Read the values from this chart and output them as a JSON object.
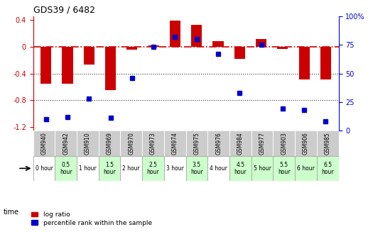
{
  "title": "GDS39 / 6482",
  "samples": [
    "GSM940",
    "GSM942",
    "GSM910",
    "GSM969",
    "GSM970",
    "GSM973",
    "GSM974",
    "GSM975",
    "GSM976",
    "GSM984",
    "GSM977",
    "GSM903",
    "GSM906",
    "GSM985"
  ],
  "time_labels": [
    "0 hour",
    "0.5\nhour",
    "1 hour",
    "1.5\nhour",
    "2 hour",
    "2.5\nhour",
    "3 hour",
    "3.5\nhour",
    "4 hour",
    "4.5\nhour",
    "5 hour",
    "5.5\nhour",
    "6 hour",
    "6.5\nhour"
  ],
  "log_ratio": [
    -0.55,
    -0.55,
    -0.27,
    -0.65,
    -0.05,
    0.02,
    0.39,
    0.32,
    0.08,
    -0.18,
    0.11,
    -0.04,
    -0.49,
    -0.49
  ],
  "percentile": [
    10,
    12,
    28,
    11,
    46,
    73,
    82,
    80,
    67,
    33,
    75,
    19,
    18,
    8
  ],
  "ylim_left": [
    -1.25,
    0.45
  ],
  "ylim_right": [
    0,
    100
  ],
  "yticks_left": [
    -1.2,
    -0.8,
    -0.4,
    0,
    0.4
  ],
  "yticks_right": [
    0,
    25,
    50,
    75,
    100
  ],
  "bar_color": "#cc0000",
  "dot_color": "#0000cc",
  "hline_color": "#cc0000",
  "dotted_line_color": "#333333",
  "time_bg_colors": [
    "#ffffff",
    "#ccffcc",
    "#ffffff",
    "#ccffcc",
    "#ffffff",
    "#ccffcc",
    "#ffffff",
    "#ccffcc",
    "#ffffff",
    "#ccffcc",
    "#ccffcc",
    "#ccffcc",
    "#ccffcc",
    "#ccffcc"
  ],
  "sample_bg": "#cccccc",
  "legend_red": "log ratio",
  "legend_blue": "percentile rank within the sample",
  "time_row_label": "time"
}
